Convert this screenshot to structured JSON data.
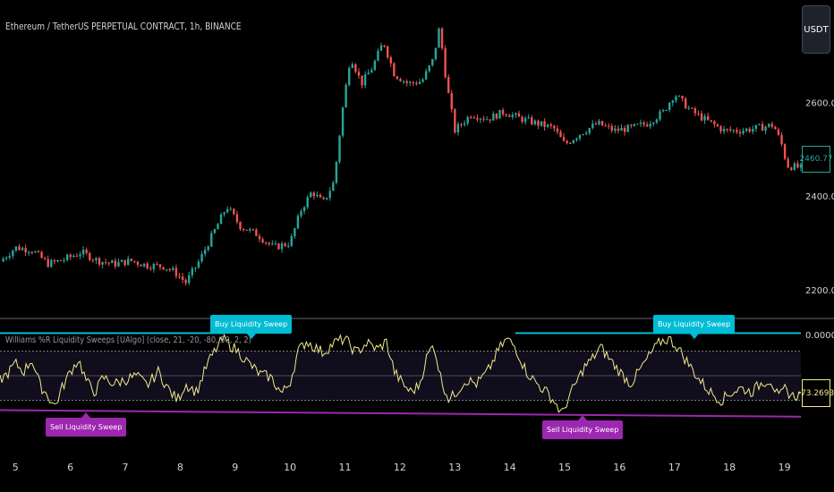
{
  "chart_title": "Ethereum / TetherUS PERPETUAL CONTRACT, 1h, BINANCE",
  "currency_button": "USDT",
  "last_price": "2460.77",
  "indicator_title": "Williams %R Liquidity Sweeps [UAlgo] (close, 21, -20, -80, 50, 2, 2)",
  "indicator_value": "-73.2693",
  "buy_label": "Buy Liquidity Sweep",
  "sell_label": "Sell Liquidity Sweep",
  "colors": {
    "up": "#26a69a",
    "down": "#ef5350",
    "wr": "#f2ea8d",
    "buy": "#00bcd4",
    "sell": "#9c27b0"
  },
  "chart_data": [
    {
      "type": "candlestick",
      "title": "Ethereum / TetherUS PERPETUAL CONTRACT, 1h, BINANCE",
      "x_ticks": [
        "5",
        "6",
        "7",
        "8",
        "9",
        "10",
        "11",
        "12",
        "13",
        "14",
        "15",
        "16",
        "17",
        "18",
        "19"
      ],
      "y_ticks": [
        2200,
        2400,
        2600
      ],
      "ylim": [
        2150,
        2790
      ],
      "xlim": [
        4.72,
        19.3
      ],
      "close_path": [
        {
          "x": 4.72,
          "y": 2260
        },
        {
          "x": 5.0,
          "y": 2290
        },
        {
          "x": 5.3,
          "y": 2285
        },
        {
          "x": 5.6,
          "y": 2255
        },
        {
          "x": 5.9,
          "y": 2265
        },
        {
          "x": 6.2,
          "y": 2280
        },
        {
          "x": 6.5,
          "y": 2262
        },
        {
          "x": 6.8,
          "y": 2255
        },
        {
          "x": 7.1,
          "y": 2262
        },
        {
          "x": 7.4,
          "y": 2252
        },
        {
          "x": 7.7,
          "y": 2250
        },
        {
          "x": 7.9,
          "y": 2238
        },
        {
          "x": 8.1,
          "y": 2215
        },
        {
          "x": 8.35,
          "y": 2262
        },
        {
          "x": 8.6,
          "y": 2320
        },
        {
          "x": 8.85,
          "y": 2378
        },
        {
          "x": 9.1,
          "y": 2335
        },
        {
          "x": 9.4,
          "y": 2318
        },
        {
          "x": 9.7,
          "y": 2290
        },
        {
          "x": 10.0,
          "y": 2300
        },
        {
          "x": 10.2,
          "y": 2370
        },
        {
          "x": 10.4,
          "y": 2410
        },
        {
          "x": 10.6,
          "y": 2385
        },
        {
          "x": 10.8,
          "y": 2430
        },
        {
          "x": 10.95,
          "y": 2580
        },
        {
          "x": 11.1,
          "y": 2700
        },
        {
          "x": 11.3,
          "y": 2640
        },
        {
          "x": 11.5,
          "y": 2675
        },
        {
          "x": 11.7,
          "y": 2730
        },
        {
          "x": 11.9,
          "y": 2660
        },
        {
          "x": 12.15,
          "y": 2640
        },
        {
          "x": 12.4,
          "y": 2645
        },
        {
          "x": 12.6,
          "y": 2690
        },
        {
          "x": 12.72,
          "y": 2760
        },
        {
          "x": 12.85,
          "y": 2640
        },
        {
          "x": 13.0,
          "y": 2540
        },
        {
          "x": 13.3,
          "y": 2575
        },
        {
          "x": 13.6,
          "y": 2565
        },
        {
          "x": 13.9,
          "y": 2580
        },
        {
          "x": 14.2,
          "y": 2565
        },
        {
          "x": 14.5,
          "y": 2555
        },
        {
          "x": 14.8,
          "y": 2545
        },
        {
          "x": 15.0,
          "y": 2510
        },
        {
          "x": 15.3,
          "y": 2535
        },
        {
          "x": 15.6,
          "y": 2555
        },
        {
          "x": 15.9,
          "y": 2540
        },
        {
          "x": 16.2,
          "y": 2545
        },
        {
          "x": 16.5,
          "y": 2555
        },
        {
          "x": 16.8,
          "y": 2580
        },
        {
          "x": 17.0,
          "y": 2618
        },
        {
          "x": 17.3,
          "y": 2582
        },
        {
          "x": 17.6,
          "y": 2560
        },
        {
          "x": 17.9,
          "y": 2540
        },
        {
          "x": 18.2,
          "y": 2540
        },
        {
          "x": 18.5,
          "y": 2545
        },
        {
          "x": 18.8,
          "y": 2552
        },
        {
          "x": 18.95,
          "y": 2510
        },
        {
          "x": 19.05,
          "y": 2465
        },
        {
          "x": 19.3,
          "y": 2460
        }
      ]
    },
    {
      "type": "line",
      "title": "Williams %R Liquidity Sweeps [UAlgo] (close, 21, -20, -80, 50, 2, 2)",
      "y_ticks": [
        0
      ],
      "ylim": [
        -110,
        10
      ],
      "levels": [
        -20,
        -50,
        -80
      ],
      "wr_path": [
        {
          "x": 4.72,
          "y": -55
        },
        {
          "x": 4.85,
          "y": -48
        },
        {
          "x": 5.0,
          "y": -35
        },
        {
          "x": 5.15,
          "y": -45
        },
        {
          "x": 5.3,
          "y": -30
        },
        {
          "x": 5.45,
          "y": -62
        },
        {
          "x": 5.6,
          "y": -75
        },
        {
          "x": 5.72,
          "y": -88
        },
        {
          "x": 5.85,
          "y": -65
        },
        {
          "x": 6.0,
          "y": -45
        },
        {
          "x": 6.15,
          "y": -30
        },
        {
          "x": 6.3,
          "y": -58
        },
        {
          "x": 6.45,
          "y": -70
        },
        {
          "x": 6.6,
          "y": -52
        },
        {
          "x": 6.8,
          "y": -60
        },
        {
          "x": 7.0,
          "y": -55
        },
        {
          "x": 7.2,
          "y": -50
        },
        {
          "x": 7.4,
          "y": -62
        },
        {
          "x": 7.6,
          "y": -45
        },
        {
          "x": 7.8,
          "y": -68
        },
        {
          "x": 7.95,
          "y": -80
        },
        {
          "x": 8.1,
          "y": -60
        },
        {
          "x": 8.3,
          "y": -70
        },
        {
          "x": 8.5,
          "y": -35
        },
        {
          "x": 8.65,
          "y": -18
        },
        {
          "x": 8.78,
          "y": -5
        },
        {
          "x": 8.9,
          "y": -12
        },
        {
          "x": 9.05,
          "y": -20
        },
        {
          "x": 9.25,
          "y": -35
        },
        {
          "x": 9.45,
          "y": -48
        },
        {
          "x": 9.65,
          "y": -52
        },
        {
          "x": 9.85,
          "y": -72
        },
        {
          "x": 10.0,
          "y": -58
        },
        {
          "x": 10.15,
          "y": -20
        },
        {
          "x": 10.3,
          "y": -8
        },
        {
          "x": 10.45,
          "y": -15
        },
        {
          "x": 10.6,
          "y": -22
        },
        {
          "x": 10.8,
          "y": -10
        },
        {
          "x": 11.0,
          "y": -5
        },
        {
          "x": 11.2,
          "y": -22
        },
        {
          "x": 11.4,
          "y": -10
        },
        {
          "x": 11.6,
          "y": -18
        },
        {
          "x": 11.75,
          "y": -8
        },
        {
          "x": 11.9,
          "y": -45
        },
        {
          "x": 12.05,
          "y": -60
        },
        {
          "x": 12.2,
          "y": -70
        },
        {
          "x": 12.35,
          "y": -62
        },
        {
          "x": 12.5,
          "y": -25
        },
        {
          "x": 12.62,
          "y": -12
        },
        {
          "x": 12.75,
          "y": -55
        },
        {
          "x": 12.9,
          "y": -80
        },
        {
          "x": 13.05,
          "y": -68
        },
        {
          "x": 13.2,
          "y": -55
        },
        {
          "x": 13.4,
          "y": -60
        },
        {
          "x": 13.6,
          "y": -45
        },
        {
          "x": 13.8,
          "y": -18
        },
        {
          "x": 13.95,
          "y": -5
        },
        {
          "x": 14.1,
          "y": -15
        },
        {
          "x": 14.3,
          "y": -45
        },
        {
          "x": 14.5,
          "y": -60
        },
        {
          "x": 14.7,
          "y": -72
        },
        {
          "x": 14.85,
          "y": -85
        },
        {
          "x": 14.95,
          "y": -98
        },
        {
          "x": 15.05,
          "y": -80
        },
        {
          "x": 15.2,
          "y": -60
        },
        {
          "x": 15.35,
          "y": -40
        },
        {
          "x": 15.5,
          "y": -30
        },
        {
          "x": 15.65,
          "y": -15
        },
        {
          "x": 15.8,
          "y": -28
        },
        {
          "x": 16.0,
          "y": -45
        },
        {
          "x": 16.2,
          "y": -60
        },
        {
          "x": 16.4,
          "y": -40
        },
        {
          "x": 16.6,
          "y": -20
        },
        {
          "x": 16.75,
          "y": -8
        },
        {
          "x": 16.9,
          "y": -5
        },
        {
          "x": 17.05,
          "y": -15
        },
        {
          "x": 17.25,
          "y": -35
        },
        {
          "x": 17.45,
          "y": -55
        },
        {
          "x": 17.65,
          "y": -70
        },
        {
          "x": 17.85,
          "y": -80
        },
        {
          "x": 18.0,
          "y": -72
        },
        {
          "x": 18.2,
          "y": -65
        },
        {
          "x": 18.4,
          "y": -70
        },
        {
          "x": 18.6,
          "y": -58
        },
        {
          "x": 18.75,
          "y": -55
        },
        {
          "x": 18.9,
          "y": -78
        },
        {
          "x": 19.0,
          "y": -66
        },
        {
          "x": 19.15,
          "y": -75
        },
        {
          "x": 19.3,
          "y": -73
        }
      ],
      "buy_sweep_line": [
        {
          "x": 4.72,
          "y": 2
        },
        {
          "x": 8.8,
          "y": 2
        },
        {
          "x": 14.1,
          "y": 2
        },
        {
          "x": 19.3,
          "y": 2
        }
      ],
      "sell_sweep_line": [
        {
          "x": 4.72,
          "y": -92
        },
        {
          "x": 19.3,
          "y": -100
        }
      ]
    }
  ]
}
